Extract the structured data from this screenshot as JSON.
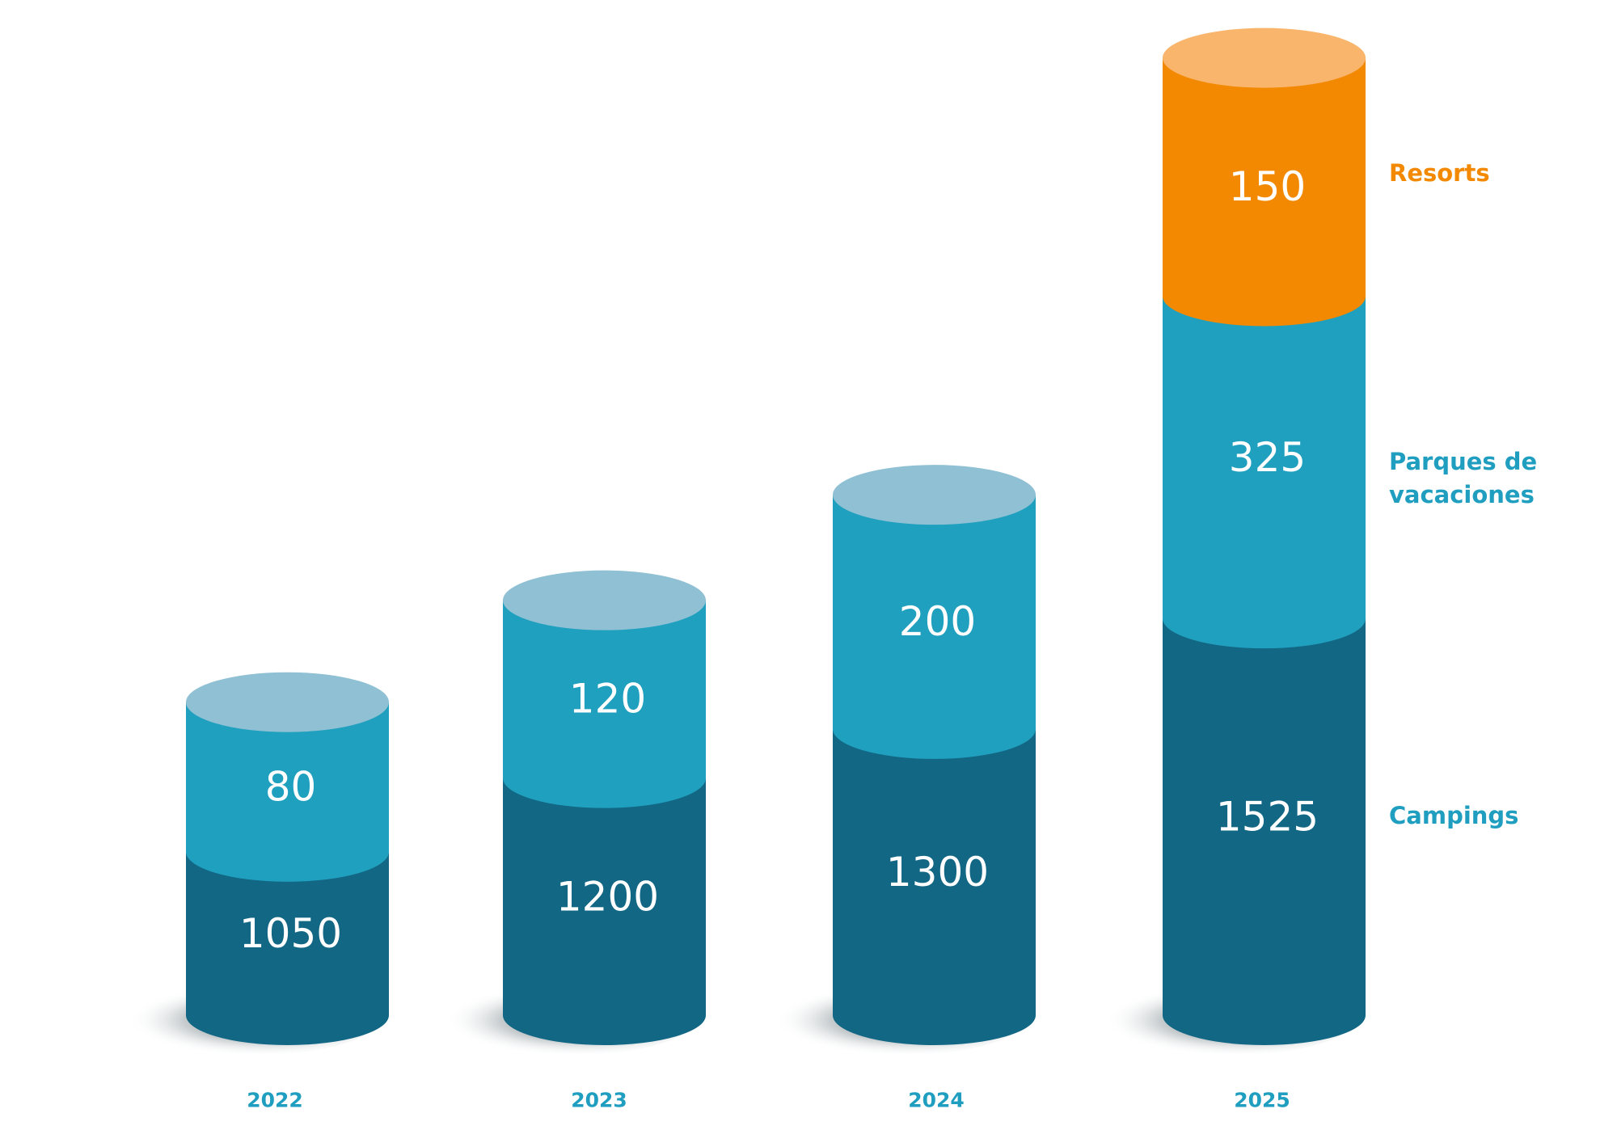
{
  "chart_data": {
    "type": "bar",
    "style": "stacked 3D cylinders",
    "categories": [
      "2022",
      "2023",
      "2024",
      "2025"
    ],
    "series": [
      {
        "name": "Campings",
        "values": [
          1050,
          1200,
          1300,
          1525
        ],
        "color": "#126784",
        "top_color": "#126784",
        "label_color": "#1f9ec0",
        "label_lines": [
          "Campings"
        ]
      },
      {
        "name": "Parques de vacaciones",
        "values": [
          80,
          120,
          200,
          325
        ],
        "color": "#20a0bf",
        "top_color": "#8fc0d4",
        "label_color": "#1f9ec0",
        "label_lines": [
          "Parques de",
          "vacaciones"
        ]
      },
      {
        "name": "Resorts",
        "values": [
          null,
          null,
          null,
          150
        ],
        "color": "#f28900",
        "top_color": "#f9b56c",
        "label_color": "#f28900",
        "label_lines": [
          "Resorts"
        ]
      }
    ],
    "data_labels": true,
    "legend_placement": "right, aligned with each segment of the last bar",
    "axes_visible": false,
    "grid": false,
    "year_label_color": "#1f9ec0"
  }
}
